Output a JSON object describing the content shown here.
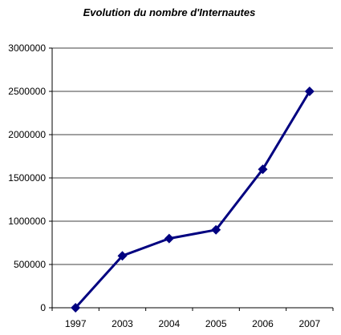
{
  "chart_data": {
    "type": "line",
    "title": "Evolution du nombre d'Internautes",
    "xlabel": "",
    "ylabel": "",
    "categories": [
      "1997",
      "2003",
      "2004",
      "2005",
      "2006",
      "2007"
    ],
    "series": [
      {
        "values": [
          0,
          600000,
          800000,
          900000,
          1600000,
          2500000
        ]
      }
    ],
    "ylim": [
      0,
      3000000
    ],
    "yticks": [
      "0",
      "500000",
      "1000000",
      "1500000",
      "2000000",
      "2500000",
      "3000000"
    ],
    "grid": true,
    "legend": "none",
    "line_color": "#000080",
    "grid_color": "#000000"
  }
}
